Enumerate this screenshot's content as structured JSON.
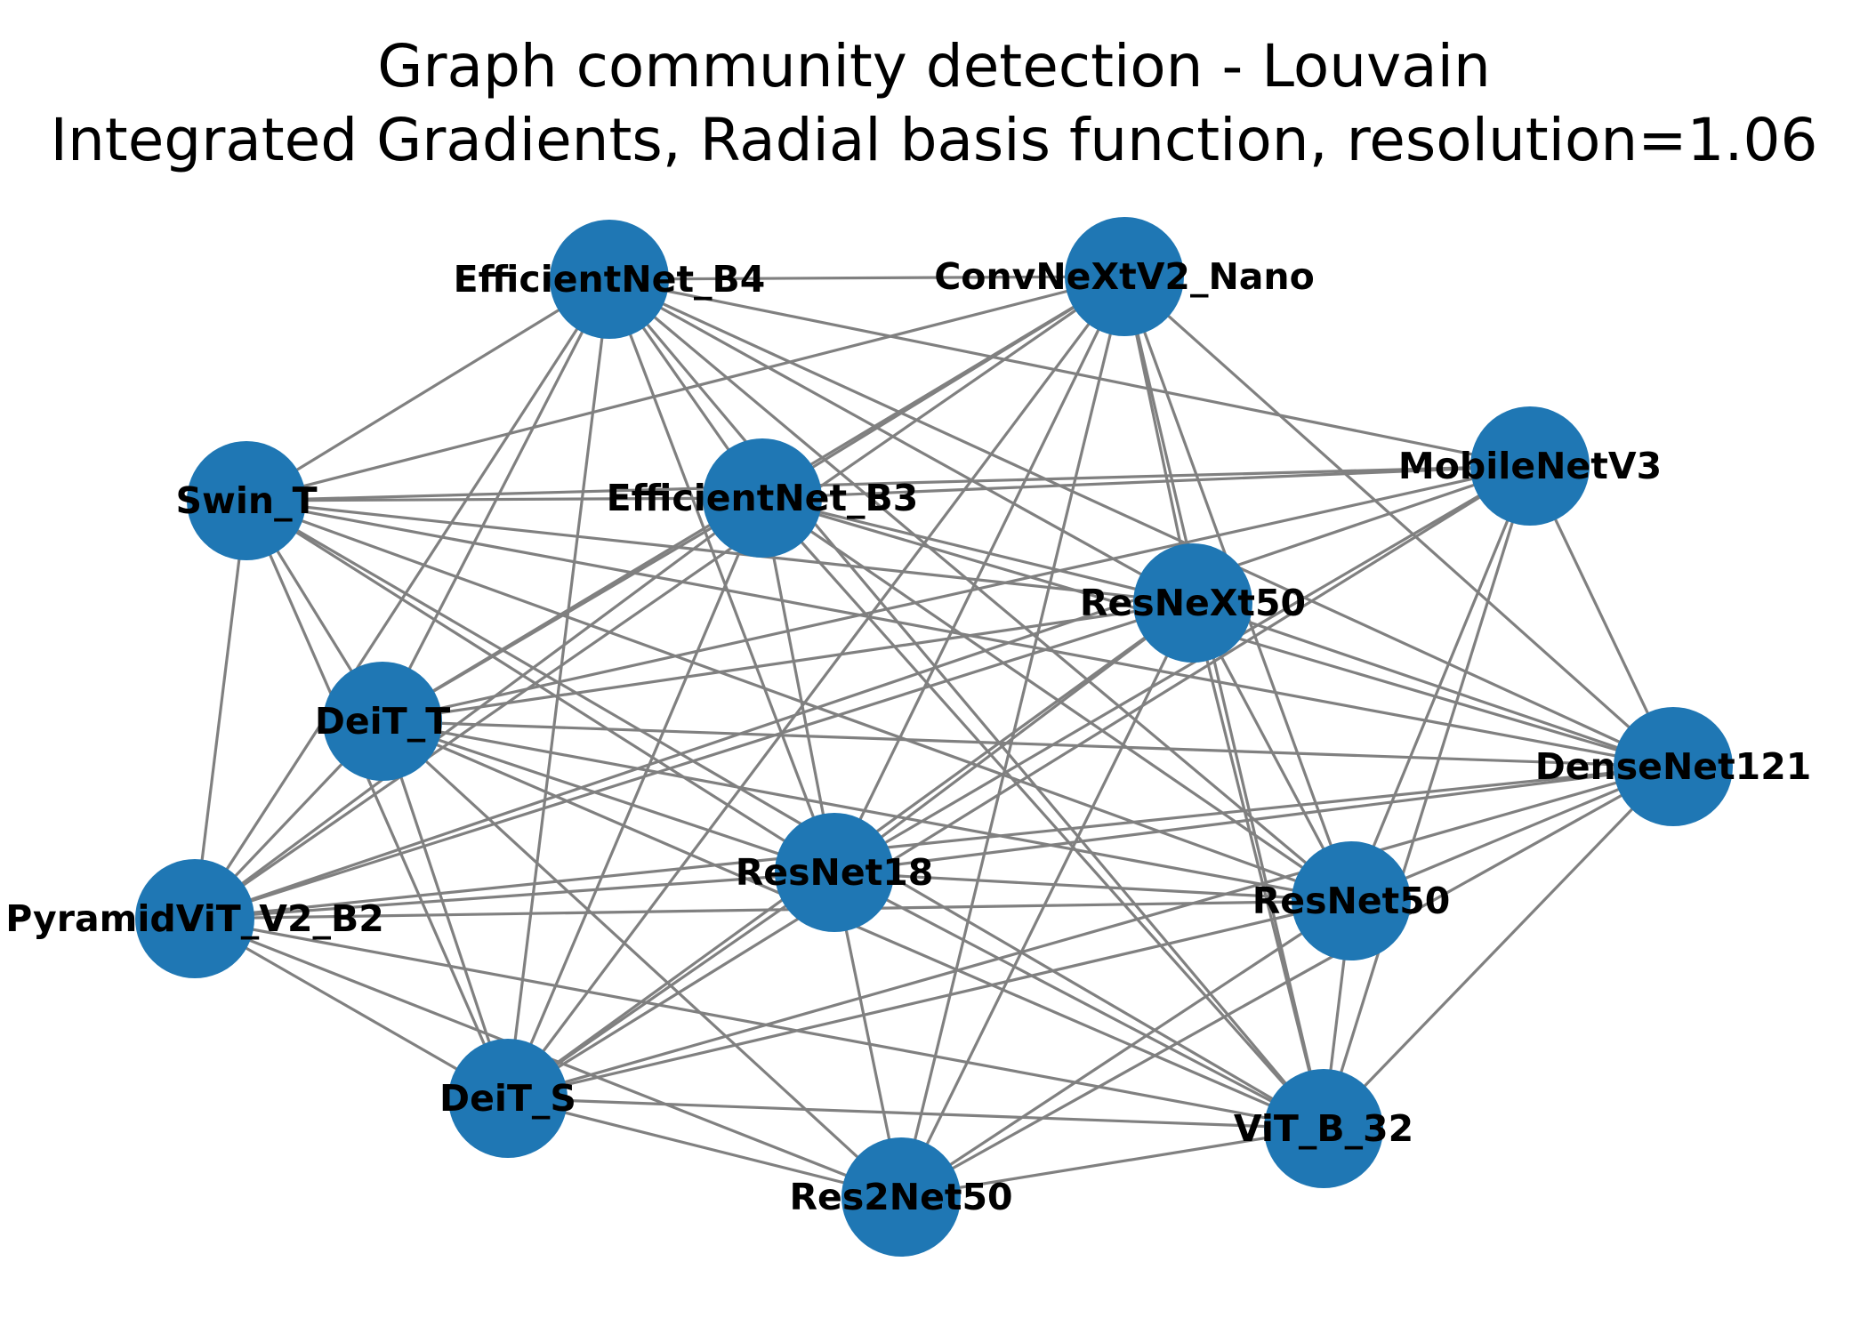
{
  "title": {
    "line1": "Graph community detection - Louvain",
    "line2": "Integrated Gradients, Radial basis function, resolution=1.06"
  },
  "colors": {
    "node": "#1f77b4",
    "edge": "#808080",
    "label": "#000000",
    "background": "#ffffff"
  },
  "graph": {
    "nodes": [
      {
        "id": "EfficientNet_B4"
      },
      {
        "id": "ConvNeXtV2_Nano"
      },
      {
        "id": "Swin_T"
      },
      {
        "id": "EfficientNet_B3"
      },
      {
        "id": "MobileNetV3"
      },
      {
        "id": "ResNeXt50"
      },
      {
        "id": "DeiT_T"
      },
      {
        "id": "DenseNet121"
      },
      {
        "id": "ResNet18"
      },
      {
        "id": "PyramidViT_V2_B2"
      },
      {
        "id": "ResNet50"
      },
      {
        "id": "DeiT_S"
      },
      {
        "id": "ViT_B_32"
      },
      {
        "id": "Res2Net50"
      }
    ],
    "edges": [
      [
        "EfficientNet_B4",
        "ConvNeXtV2_Nano"
      ],
      [
        "EfficientNet_B4",
        "Swin_T"
      ],
      [
        "EfficientNet_B4",
        "EfficientNet_B3"
      ],
      [
        "EfficientNet_B4",
        "MobileNetV3"
      ],
      [
        "EfficientNet_B4",
        "ResNeXt50"
      ],
      [
        "EfficientNet_B4",
        "DeiT_T"
      ],
      [
        "EfficientNet_B4",
        "ResNet18"
      ],
      [
        "EfficientNet_B4",
        "PyramidViT_V2_B2"
      ],
      [
        "EfficientNet_B4",
        "ResNet50"
      ],
      [
        "EfficientNet_B4",
        "DeiT_S"
      ],
      [
        "EfficientNet_B4",
        "ViT_B_32"
      ],
      [
        "EfficientNet_B4",
        "DenseNet121"
      ],
      [
        "ConvNeXtV2_Nano",
        "Swin_T"
      ],
      [
        "ConvNeXtV2_Nano",
        "EfficientNet_B3"
      ],
      [
        "ConvNeXtV2_Nano",
        "ResNeXt50"
      ],
      [
        "ConvNeXtV2_Nano",
        "DenseNet121"
      ],
      [
        "ConvNeXtV2_Nano",
        "ResNet18"
      ],
      [
        "ConvNeXtV2_Nano",
        "PyramidViT_V2_B2"
      ],
      [
        "ConvNeXtV2_Nano",
        "ResNet50"
      ],
      [
        "ConvNeXtV2_Nano",
        "DeiT_S"
      ],
      [
        "ConvNeXtV2_Nano",
        "ViT_B_32"
      ],
      [
        "ConvNeXtV2_Nano",
        "Res2Net50"
      ],
      [
        "ConvNeXtV2_Nano",
        "DeiT_T"
      ],
      [
        "Swin_T",
        "EfficientNet_B3"
      ],
      [
        "Swin_T",
        "MobileNetV3"
      ],
      [
        "Swin_T",
        "ResNeXt50"
      ],
      [
        "Swin_T",
        "DeiT_T"
      ],
      [
        "Swin_T",
        "DenseNet121"
      ],
      [
        "Swin_T",
        "ResNet18"
      ],
      [
        "Swin_T",
        "PyramidViT_V2_B2"
      ],
      [
        "Swin_T",
        "ResNet50"
      ],
      [
        "Swin_T",
        "DeiT_S"
      ],
      [
        "Swin_T",
        "ViT_B_32"
      ],
      [
        "EfficientNet_B3",
        "MobileNetV3"
      ],
      [
        "EfficientNet_B3",
        "ResNeXt50"
      ],
      [
        "EfficientNet_B3",
        "DeiT_T"
      ],
      [
        "EfficientNet_B3",
        "ResNet18"
      ],
      [
        "EfficientNet_B3",
        "PyramidViT_V2_B2"
      ],
      [
        "EfficientNet_B3",
        "ResNet50"
      ],
      [
        "EfficientNet_B3",
        "DeiT_S"
      ],
      [
        "EfficientNet_B3",
        "ViT_B_32"
      ],
      [
        "EfficientNet_B3",
        "DenseNet121"
      ],
      [
        "MobileNetV3",
        "DeiT_T"
      ],
      [
        "MobileNetV3",
        "DenseNet121"
      ],
      [
        "MobileNetV3",
        "ResNet18"
      ],
      [
        "MobileNetV3",
        "PyramidViT_V2_B2"
      ],
      [
        "MobileNetV3",
        "ResNet50"
      ],
      [
        "MobileNetV3",
        "DeiT_S"
      ],
      [
        "MobileNetV3",
        "ViT_B_32"
      ],
      [
        "ResNeXt50",
        "DeiT_T"
      ],
      [
        "ResNeXt50",
        "DenseNet121"
      ],
      [
        "ResNeXt50",
        "ResNet18"
      ],
      [
        "ResNeXt50",
        "PyramidViT_V2_B2"
      ],
      [
        "ResNeXt50",
        "ResNet50"
      ],
      [
        "ResNeXt50",
        "DeiT_S"
      ],
      [
        "ResNeXt50",
        "ViT_B_32"
      ],
      [
        "ResNeXt50",
        "Res2Net50"
      ],
      [
        "DeiT_T",
        "DenseNet121"
      ],
      [
        "DeiT_T",
        "ResNet18"
      ],
      [
        "DeiT_T",
        "PyramidViT_V2_B2"
      ],
      [
        "DeiT_T",
        "ResNet50"
      ],
      [
        "DeiT_T",
        "DeiT_S"
      ],
      [
        "DeiT_T",
        "ViT_B_32"
      ],
      [
        "DeiT_T",
        "Res2Net50"
      ],
      [
        "DenseNet121",
        "ResNet18"
      ],
      [
        "DenseNet121",
        "PyramidViT_V2_B2"
      ],
      [
        "DenseNet121",
        "ResNet50"
      ],
      [
        "DenseNet121",
        "DeiT_S"
      ],
      [
        "DenseNet121",
        "ViT_B_32"
      ],
      [
        "DenseNet121",
        "Res2Net50"
      ],
      [
        "ResNet18",
        "PyramidViT_V2_B2"
      ],
      [
        "ResNet18",
        "ResNet50"
      ],
      [
        "ResNet18",
        "DeiT_S"
      ],
      [
        "ResNet18",
        "ViT_B_32"
      ],
      [
        "ResNet18",
        "Res2Net50"
      ],
      [
        "PyramidViT_V2_B2",
        "ResNet50"
      ],
      [
        "PyramidViT_V2_B2",
        "DeiT_S"
      ],
      [
        "PyramidViT_V2_B2",
        "ViT_B_32"
      ],
      [
        "PyramidViT_V2_B2",
        "Res2Net50"
      ],
      [
        "ResNet50",
        "DeiT_S"
      ],
      [
        "ResNet50",
        "ViT_B_32"
      ],
      [
        "ResNet50",
        "Res2Net50"
      ],
      [
        "DeiT_S",
        "ViT_B_32"
      ],
      [
        "DeiT_S",
        "Res2Net50"
      ],
      [
        "ViT_B_32",
        "Res2Net50"
      ]
    ]
  }
}
